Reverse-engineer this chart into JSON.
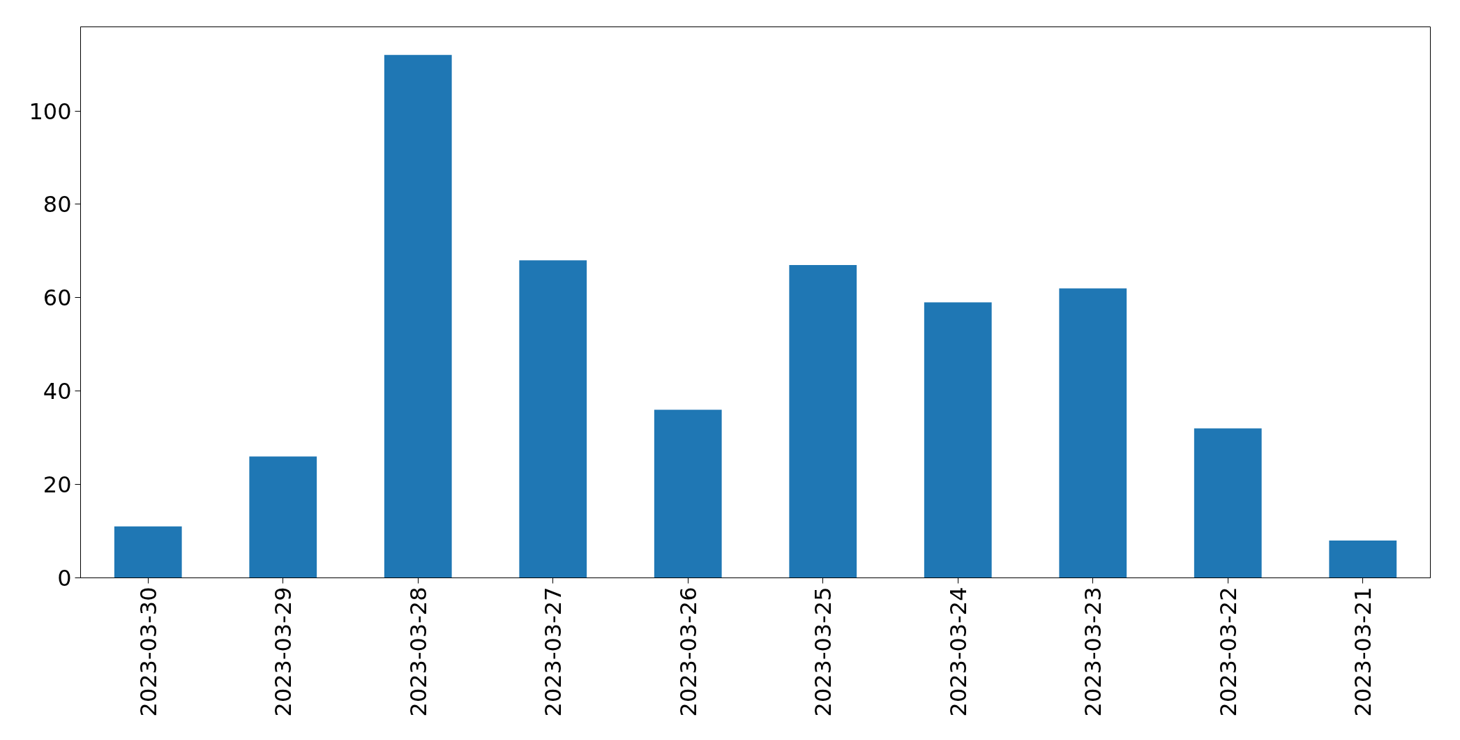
{
  "chart_data": {
    "type": "bar",
    "categories": [
      "2023-03-30",
      "2023-03-29",
      "2023-03-28",
      "2023-03-27",
      "2023-03-26",
      "2023-03-25",
      "2023-03-24",
      "2023-03-23",
      "2023-03-22",
      "2023-03-21"
    ],
    "values": [
      11,
      26,
      112,
      68,
      36,
      67,
      59,
      62,
      32,
      8
    ],
    "color": "#1f77b4",
    "ylim": [
      0,
      118
    ],
    "yticks": [
      0,
      20,
      40,
      60,
      80,
      100
    ],
    "grid": false
  }
}
